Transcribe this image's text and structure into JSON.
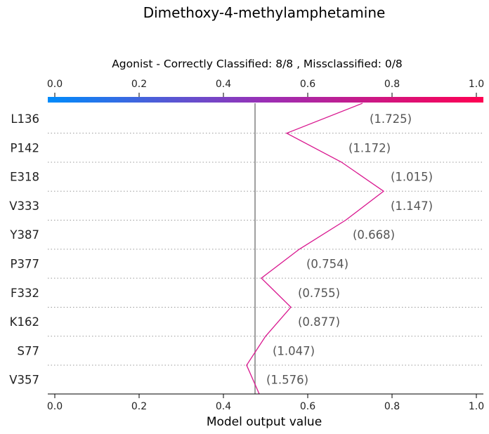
{
  "chart_data": {
    "type": "line",
    "title": "Dimethoxy-4-methylamphetamine",
    "subtitle": "Agonist - Correctly Classified: 8/8 , Missclassified: 0/8",
    "xlabel": "Model output value",
    "xlim": [
      0.0,
      1.0
    ],
    "x_ticks": [
      "0.0",
      "0.2",
      "0.4",
      "0.6",
      "0.8",
      "1.0"
    ],
    "x_tick_values": [
      0.0,
      0.2,
      0.4,
      0.6,
      0.8,
      1.0
    ],
    "base_value": 0.475,
    "colorbar": {
      "from": "#008bfb",
      "mid": "#9b2fb5",
      "to": "#ff0052"
    },
    "line_color": "#d9178f",
    "features": [
      {
        "name": "L136",
        "value_label": "(1.725)"
      },
      {
        "name": "P142",
        "value_label": "(1.172)"
      },
      {
        "name": "E318",
        "value_label": "(1.015)"
      },
      {
        "name": "V333",
        "value_label": "(1.147)"
      },
      {
        "name": "Y387",
        "value_label": "(0.668)"
      },
      {
        "name": "P377",
        "value_label": "(0.754)"
      },
      {
        "name": "F332",
        "value_label": "(0.755)"
      },
      {
        "name": "K162",
        "value_label": "(0.877)"
      },
      {
        "name": "S77",
        "value_label": "(1.047)"
      },
      {
        "name": "V357",
        "value_label": "(1.576)"
      }
    ],
    "path_values": [
      0.73,
      0.55,
      0.68,
      0.78,
      0.69,
      0.58,
      0.49,
      0.56,
      0.5,
      0.455,
      0.485
    ]
  }
}
